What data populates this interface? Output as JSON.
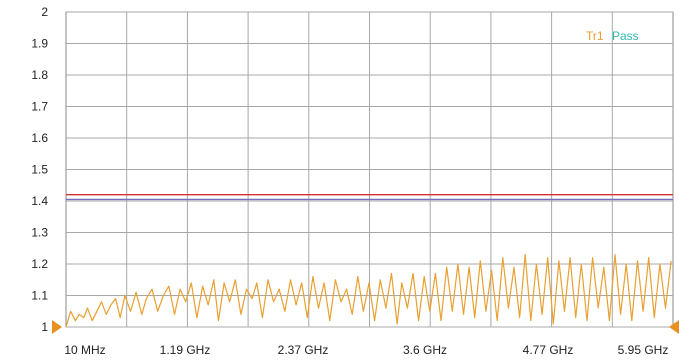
{
  "chart_data": {
    "type": "line",
    "title": "",
    "xlabel": "",
    "ylabel": "",
    "x_tick_labels": [
      "10 MHz",
      "1.19 GHz",
      "2.37 GHz",
      "3.6 GHz",
      "4.77 GHz",
      "5.95 GHz"
    ],
    "y_ticks": [
      1,
      1.1,
      1.2,
      1.3,
      1.4,
      1.5,
      1.6,
      1.7,
      1.8,
      1.9,
      2
    ],
    "y_tick_labels": [
      "1",
      "1.1",
      "1.2",
      "1.3",
      "1.4",
      "1.5",
      "1.6",
      "1.7",
      "1.8",
      "1.9",
      "2"
    ],
    "ylim": [
      1,
      2
    ],
    "xlim": [
      0.01,
      6.5
    ],
    "x_unit": "GHz",
    "grid": true,
    "legend_position": "top-right",
    "legend": {
      "trace_label": "Tr1",
      "status_label": "Pass"
    },
    "limit_lines": [
      {
        "y": 1.42,
        "color": "#d03030"
      },
      {
        "y": 1.405,
        "color": "#7070c0"
      }
    ],
    "series": [
      {
        "color": "#e8a030",
        "x": [
          0.01,
          0.06,
          0.11,
          0.15,
          0.2,
          0.24,
          0.29,
          0.34,
          0.39,
          0.44,
          0.49,
          0.54,
          0.59,
          0.64,
          0.7,
          0.76,
          0.82,
          0.87,
          0.93,
          0.99,
          1.05,
          1.11,
          1.17,
          1.23,
          1.29,
          1.35,
          1.41,
          1.47,
          1.53,
          1.59,
          1.64,
          1.7,
          1.76,
          1.82,
          1.88,
          1.94,
          2.0,
          2.05,
          2.11,
          2.17,
          2.23,
          2.29,
          2.35,
          2.41,
          2.47,
          2.53,
          2.59,
          2.65,
          2.71,
          2.77,
          2.83,
          2.89,
          2.95,
          3.01,
          3.07,
          3.13,
          3.19,
          3.25,
          3.31,
          3.37,
          3.43,
          3.49,
          3.55,
          3.6,
          3.66,
          3.72,
          3.78,
          3.84,
          3.9,
          3.96,
          4.02,
          4.08,
          4.14,
          4.2,
          4.26,
          4.32,
          4.38,
          4.44,
          4.5,
          4.56,
          4.62,
          4.68,
          4.74,
          4.8,
          4.86,
          4.92,
          4.98,
          5.04,
          5.1,
          5.16,
          5.22,
          5.28,
          5.34,
          5.4,
          5.46,
          5.52,
          5.58,
          5.64,
          5.7,
          5.76,
          5.82,
          5.88,
          5.94,
          6.0,
          6.06,
          6.12,
          6.18,
          6.24,
          6.3,
          6.36,
          6.42,
          6.48
        ],
        "values": [
          1.0,
          1.05,
          1.02,
          1.04,
          1.03,
          1.06,
          1.02,
          1.05,
          1.08,
          1.04,
          1.07,
          1.09,
          1.03,
          1.1,
          1.05,
          1.11,
          1.04,
          1.09,
          1.12,
          1.05,
          1.1,
          1.13,
          1.04,
          1.12,
          1.08,
          1.14,
          1.03,
          1.13,
          1.07,
          1.15,
          1.02,
          1.14,
          1.08,
          1.15,
          1.04,
          1.12,
          1.09,
          1.14,
          1.03,
          1.15,
          1.08,
          1.12,
          1.05,
          1.15,
          1.07,
          1.14,
          1.03,
          1.16,
          1.06,
          1.14,
          1.02,
          1.15,
          1.08,
          1.12,
          1.04,
          1.16,
          1.05,
          1.14,
          1.02,
          1.15,
          1.06,
          1.17,
          1.01,
          1.14,
          1.06,
          1.17,
          1.02,
          1.16,
          1.05,
          1.17,
          1.02,
          1.19,
          1.05,
          1.2,
          1.04,
          1.19,
          1.03,
          1.21,
          1.05,
          1.18,
          1.02,
          1.22,
          1.06,
          1.19,
          1.03,
          1.23,
          1.02,
          1.2,
          1.04,
          1.22,
          1.01,
          1.21,
          1.05,
          1.22,
          1.03,
          1.2,
          1.02,
          1.22,
          1.06,
          1.19,
          1.02,
          1.23,
          1.04,
          1.2,
          1.02,
          1.21,
          1.05,
          1.22,
          1.03,
          1.2,
          1.06,
          1.21
        ]
      }
    ]
  }
}
